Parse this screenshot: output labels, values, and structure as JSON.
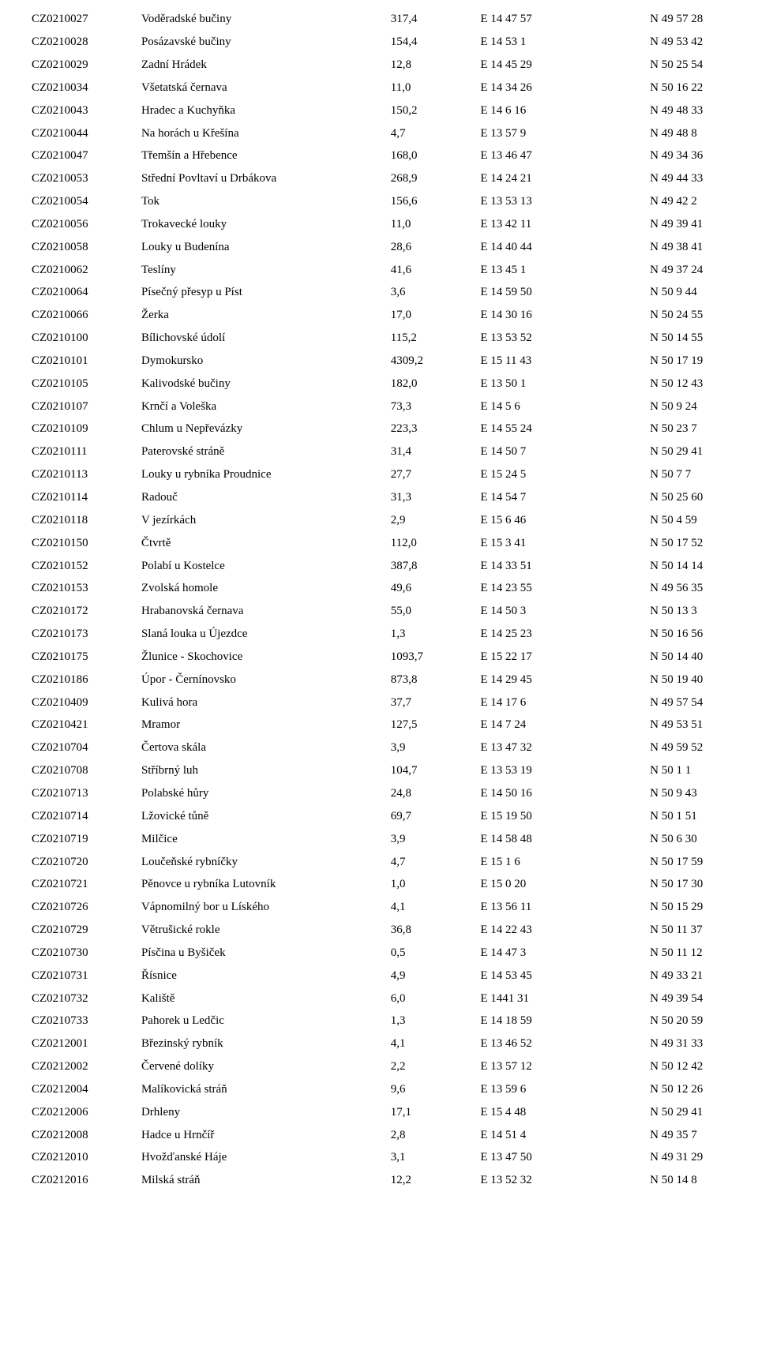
{
  "rows": [
    {
      "code": "CZ0210027",
      "name": "Voděradské bučiny",
      "area": "317,4",
      "lon": "E 14 47 57",
      "lat": "N 49 57 28"
    },
    {
      "code": "CZ0210028",
      "name": "Posázavské bučiny",
      "area": "154,4",
      "lon": "E 14 53 1",
      "lat": "N 49 53 42"
    },
    {
      "code": "CZ0210029",
      "name": "Zadní Hrádek",
      "area": "12,8",
      "lon": "E 14 45 29",
      "lat": "N 50 25 54"
    },
    {
      "code": "CZ0210034",
      "name": "Všetatská černava",
      "area": "11,0",
      "lon": "E 14 34 26",
      "lat": "N 50 16 22"
    },
    {
      "code": "CZ0210043",
      "name": "Hradec a Kuchyňka",
      "area": "150,2",
      "lon": "E 14 6 16",
      "lat": "N 49 48 33"
    },
    {
      "code": "CZ0210044",
      "name": "Na horách u Křešína",
      "area": "4,7",
      "lon": "E 13 57 9",
      "lat": "N 49 48 8"
    },
    {
      "code": "CZ0210047",
      "name": "Třemšín a Hřebence",
      "area": "168,0",
      "lon": "E 13 46 47",
      "lat": "N 49 34 36"
    },
    {
      "code": "CZ0210053",
      "name": "Střední Povltaví u Drbákova",
      "area": "268,9",
      "lon": "E 14 24 21",
      "lat": "N 49 44 33"
    },
    {
      "code": "CZ0210054",
      "name": "Tok",
      "area": "156,6",
      "lon": "E 13 53 13",
      "lat": "N 49 42 2"
    },
    {
      "code": "CZ0210056",
      "name": "Trokavecké louky",
      "area": "11,0",
      "lon": "E 13 42 11",
      "lat": "N 49 39 41"
    },
    {
      "code": "CZ0210058",
      "name": "Louky u Budenína",
      "area": "28,6",
      "lon": "E 14 40 44",
      "lat": "N 49 38 41"
    },
    {
      "code": "CZ0210062",
      "name": "Teslíny",
      "area": "41,6",
      "lon": "E 13 45 1",
      "lat": "N 49 37 24"
    },
    {
      "code": "CZ0210064",
      "name": "Písečný přesyp u Píst",
      "area": "3,6",
      "lon": "E 14 59 50",
      "lat": "N 50 9 44"
    },
    {
      "code": "CZ0210066",
      "name": "Žerka",
      "area": "17,0",
      "lon": "E 14 30 16",
      "lat": "N 50 24 55"
    },
    {
      "code": "CZ0210100",
      "name": "Bílichovské údolí",
      "area": "115,2",
      "lon": "E 13 53 52",
      "lat": "N 50 14 55"
    },
    {
      "code": "CZ0210101",
      "name": "Dymokursko",
      "area": "4309,2",
      "lon": "E 15 11 43",
      "lat": "N 50 17 19"
    },
    {
      "code": "CZ0210105",
      "name": "Kalivodské bučiny",
      "area": "182,0",
      "lon": "E 13 50 1",
      "lat": "N 50 12 43"
    },
    {
      "code": "CZ0210107",
      "name": "Krnčí a Voleška",
      "area": "73,3",
      "lon": "E 14 5 6",
      "lat": "N 50 9 24"
    },
    {
      "code": "CZ0210109",
      "name": "Chlum u Nepřevázky",
      "area": "223,3",
      "lon": "E 14 55 24",
      "lat": "N 50 23 7"
    },
    {
      "code": "CZ0210111",
      "name": "Paterovské stráně",
      "area": "31,4",
      "lon": "E 14 50 7",
      "lat": "N 50 29 41"
    },
    {
      "code": "CZ0210113",
      "name": "Louky u rybníka Proudnice",
      "area": "27,7",
      "lon": "E 15 24 5",
      "lat": "N 50 7 7"
    },
    {
      "code": "CZ0210114",
      "name": "Radouč",
      "area": "31,3",
      "lon": "E 14 54 7",
      "lat": "N 50 25 60"
    },
    {
      "code": "CZ0210118",
      "name": "V jezírkách",
      "area": "2,9",
      "lon": "E 15 6 46",
      "lat": "N 50 4 59"
    },
    {
      "code": "CZ0210150",
      "name": "Čtvrtě",
      "area": "112,0",
      "lon": "E 15 3 41",
      "lat": "N 50 17 52"
    },
    {
      "code": "CZ0210152",
      "name": "Polabí u Kostelce",
      "area": "387,8",
      "lon": "E 14 33 51",
      "lat": "N 50 14 14"
    },
    {
      "code": "CZ0210153",
      "name": "Zvolská homole",
      "area": "49,6",
      "lon": "E 14 23 55",
      "lat": "N 49 56 35"
    },
    {
      "code": "CZ0210172",
      "name": "Hrabanovská černava",
      "area": "55,0",
      "lon": "E 14 50 3",
      "lat": "N 50 13 3"
    },
    {
      "code": "CZ0210173",
      "name": "Slaná louka u Újezdce",
      "area": "1,3",
      "lon": "E 14 25 23",
      "lat": "N 50 16 56"
    },
    {
      "code": "CZ0210175",
      "name": "Žlunice - Skochovice",
      "area": "1093,7",
      "lon": "E 15 22 17",
      "lat": "N 50 14 40"
    },
    {
      "code": "CZ0210186",
      "name": "Úpor - Černínovsko",
      "area": "873,8",
      "lon": "E 14 29 45",
      "lat": "N 50 19 40"
    },
    {
      "code": "CZ0210409",
      "name": "Kulivá hora",
      "area": "37,7",
      "lon": "E 14 17 6",
      "lat": "N 49 57 54"
    },
    {
      "code": "CZ0210421",
      "name": "Mramor",
      "area": "127,5",
      "lon": "E 14 7 24",
      "lat": "N 49 53 51"
    },
    {
      "code": "CZ0210704",
      "name": "Čertova skála",
      "area": "3,9",
      "lon": "E 13 47 32",
      "lat": "N 49 59 52"
    },
    {
      "code": "CZ0210708",
      "name": "Stříbrný luh",
      "area": "104,7",
      "lon": "E 13 53 19",
      "lat": "N 50 1 1"
    },
    {
      "code": "CZ0210713",
      "name": "Polabské hůry",
      "area": "24,8",
      "lon": "E 14 50 16",
      "lat": "N 50 9 43"
    },
    {
      "code": "CZ0210714",
      "name": "Lžovické tůně",
      "area": "69,7",
      "lon": "E 15 19 50",
      "lat": "N 50 1 51"
    },
    {
      "code": "CZ0210719",
      "name": "Milčice",
      "area": "3,9",
      "lon": "E 14 58 48",
      "lat": "N 50 6 30"
    },
    {
      "code": "CZ0210720",
      "name": "Loučeňské rybníčky",
      "area": "4,7",
      "lon": "E 15 1 6",
      "lat": "N 50 17 59"
    },
    {
      "code": "CZ0210721",
      "name": "Pěnovce u rybníka Lutovník",
      "area": "1,0",
      "lon": "E 15 0 20",
      "lat": "N 50 17 30"
    },
    {
      "code": "CZ0210726",
      "name": "Vápnomilný bor u Líského",
      "area": "4,1",
      "lon": "E 13 56 11",
      "lat": "N 50 15 29"
    },
    {
      "code": "CZ0210729",
      "name": "Větrušické rokle",
      "area": "36,8",
      "lon": "E 14 22 43",
      "lat": "N 50 11 37"
    },
    {
      "code": "CZ0210730",
      "name": "Písčina u Byšiček",
      "area": "0,5",
      "lon": "E 14 47 3",
      "lat": "N 50 11 12"
    },
    {
      "code": "CZ0210731",
      "name": "Řísnice",
      "area": "4,9",
      "lon": "E 14 53 45",
      "lat": "N 49 33 21"
    },
    {
      "code": "CZ0210732",
      "name": "Kaliště",
      "area": "6,0",
      "lon": "E 1441 31",
      "lat": "N 49 39 54"
    },
    {
      "code": "CZ0210733",
      "name": "Pahorek u Ledčic",
      "area": "1,3",
      "lon": "E 14 18 59",
      "lat": "N 50 20 59"
    },
    {
      "code": "CZ0212001",
      "name": "Březinský rybník",
      "area": "4,1",
      "lon": "E 13 46 52",
      "lat": "N 49 31 33"
    },
    {
      "code": "CZ0212002",
      "name": "Červené dolíky",
      "area": "2,2",
      "lon": "E 13 57 12",
      "lat": "N 50 12 42"
    },
    {
      "code": "CZ0212004",
      "name": "Malíkovická stráň",
      "area": "9,6",
      "lon": "E 13 59 6",
      "lat": "N 50 12 26"
    },
    {
      "code": "CZ0212006",
      "name": "Drhleny",
      "area": "17,1",
      "lon": "E 15 4 48",
      "lat": "N 50 29 41"
    },
    {
      "code": "CZ0212008",
      "name": "Hadce u Hrnčíř",
      "area": "2,8",
      "lon": "E 14 51 4",
      "lat": "N 49 35 7"
    },
    {
      "code": "CZ0212010",
      "name": "Hvožďanské Háje",
      "area": "3,1",
      "lon": "E 13 47 50",
      "lat": "N 49 31 29"
    },
    {
      "code": "CZ0212016",
      "name": "Milská stráň",
      "area": "12,2",
      "lon": "E 13 52 32",
      "lat": "N 50 14 8"
    }
  ]
}
